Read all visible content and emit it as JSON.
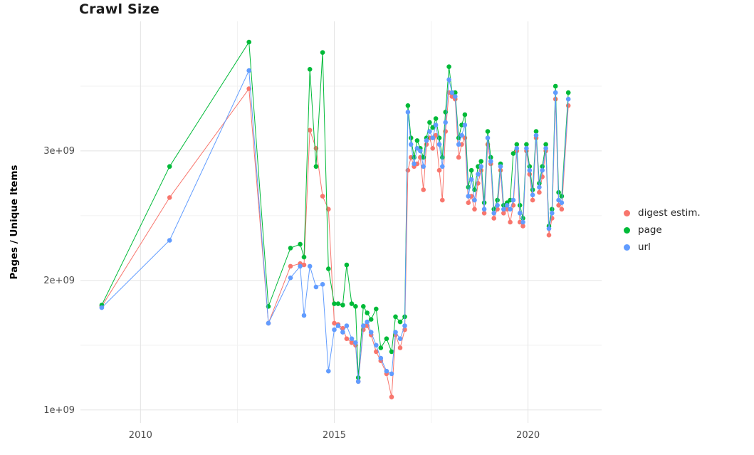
{
  "chart_data": {
    "type": "line",
    "title": "Crawl Size",
    "xlabel": "",
    "ylabel": "Pages / Unique Items",
    "y_values_unit": "billions (1e9) of pages / unique items",
    "legend_position": "right-center",
    "grid": "major and minor light-gray gridlines on white background, no axis lines",
    "xlim": [
      2008.45,
      2021.9
    ],
    "ylim_billions": [
      0.9,
      4.0
    ],
    "x_ticks": [
      2010,
      2015,
      2020
    ],
    "x_tick_labels": [
      "2010",
      "2015",
      "2020"
    ],
    "x_minor_ticks": [
      2012.5,
      2017.5
    ],
    "y_ticks_billions": [
      1,
      2,
      3
    ],
    "y_tick_labels": [
      "1e+09",
      "2e+09",
      "3e+09"
    ],
    "y_minor_ticks_billions": [
      1.5,
      2.5,
      3.5
    ],
    "x_years": [
      2009.0,
      2010.75,
      2012.8,
      2013.3,
      2013.87,
      2014.12,
      2014.22,
      2014.37,
      2014.53,
      2014.7,
      2014.85,
      2015.0,
      2015.1,
      2015.22,
      2015.32,
      2015.45,
      2015.55,
      2015.62,
      2015.75,
      2015.85,
      2015.95,
      2016.08,
      2016.2,
      2016.35,
      2016.48,
      2016.58,
      2016.7,
      2016.82,
      2016.9,
      2016.98,
      2017.06,
      2017.14,
      2017.22,
      2017.3,
      2017.38,
      2017.46,
      2017.54,
      2017.62,
      2017.71,
      2017.79,
      2017.87,
      2017.96,
      2018.04,
      2018.12,
      2018.21,
      2018.29,
      2018.37,
      2018.46,
      2018.54,
      2018.62,
      2018.71,
      2018.79,
      2018.87,
      2018.96,
      2019.04,
      2019.12,
      2019.21,
      2019.29,
      2019.37,
      2019.46,
      2019.54,
      2019.62,
      2019.71,
      2019.79,
      2019.87,
      2019.96,
      2020.04,
      2020.12,
      2020.21,
      2020.29,
      2020.37,
      2020.46,
      2020.54,
      2020.62,
      2020.71,
      2020.79,
      2020.87,
      2021.04
    ],
    "series": [
      {
        "name": "digest estim.",
        "color": "#F8766D",
        "values_billions": [
          1.8,
          2.64,
          3.48,
          1.67,
          2.11,
          2.13,
          2.12,
          3.16,
          3.02,
          2.65,
          2.55,
          1.67,
          1.66,
          1.63,
          1.55,
          1.52,
          1.5,
          1.22,
          1.62,
          1.65,
          1.58,
          1.45,
          1.38,
          1.28,
          1.1,
          1.58,
          1.48,
          1.62,
          2.85,
          2.95,
          2.88,
          2.9,
          2.95,
          2.7,
          3.05,
          3.1,
          3.02,
          3.12,
          2.85,
          2.62,
          3.15,
          3.45,
          3.42,
          3.4,
          2.95,
          3.05,
          3.1,
          2.6,
          2.65,
          2.55,
          2.75,
          2.85,
          2.52,
          3.05,
          2.9,
          2.48,
          2.55,
          2.85,
          2.52,
          2.55,
          2.45,
          2.58,
          3.0,
          2.45,
          2.42,
          3.0,
          2.82,
          2.62,
          3.1,
          2.68,
          2.8,
          3.0,
          2.35,
          2.48,
          3.4,
          2.58,
          2.55,
          3.35
        ]
      },
      {
        "name": "page",
        "color": "#00BA38",
        "values_billions": [
          1.81,
          2.88,
          3.84,
          1.8,
          2.25,
          2.28,
          2.18,
          3.63,
          2.88,
          3.76,
          2.09,
          1.82,
          1.82,
          1.81,
          2.12,
          1.82,
          1.8,
          1.25,
          1.8,
          1.75,
          1.7,
          1.78,
          1.48,
          1.55,
          1.45,
          1.72,
          1.68,
          1.72,
          3.35,
          3.1,
          2.95,
          3.08,
          3.02,
          2.95,
          3.1,
          3.22,
          3.18,
          3.25,
          3.1,
          2.95,
          3.3,
          3.65,
          3.45,
          3.45,
          3.1,
          3.2,
          3.28,
          2.72,
          2.85,
          2.7,
          2.88,
          2.92,
          2.6,
          3.15,
          2.95,
          2.55,
          2.62,
          2.9,
          2.58,
          2.6,
          2.62,
          2.98,
          3.05,
          2.58,
          2.48,
          3.05,
          2.88,
          2.7,
          3.15,
          2.75,
          2.88,
          3.05,
          2.42,
          2.55,
          3.5,
          2.68,
          2.65,
          3.45
        ]
      },
      {
        "name": "url",
        "color": "#619CFF",
        "values_billions": [
          1.79,
          2.31,
          3.62,
          1.67,
          2.02,
          2.11,
          1.73,
          2.11,
          1.95,
          1.97,
          1.3,
          1.62,
          1.65,
          1.6,
          1.65,
          1.55,
          1.52,
          1.22,
          1.65,
          1.68,
          1.6,
          1.5,
          1.4,
          1.3,
          1.28,
          1.6,
          1.55,
          1.65,
          3.3,
          3.05,
          2.9,
          3.02,
          3.0,
          2.88,
          3.08,
          3.15,
          3.1,
          3.2,
          3.05,
          2.88,
          3.22,
          3.55,
          3.45,
          3.42,
          3.05,
          3.12,
          3.2,
          2.65,
          2.78,
          2.62,
          2.82,
          2.88,
          2.55,
          3.1,
          2.92,
          2.52,
          2.58,
          2.88,
          2.55,
          2.58,
          2.55,
          2.62,
          3.02,
          2.52,
          2.45,
          3.02,
          2.85,
          2.66,
          3.12,
          2.72,
          2.85,
          3.02,
          2.4,
          2.52,
          3.45,
          2.62,
          2.6,
          3.4
        ]
      }
    ]
  },
  "styles": {
    "background": "#ffffff",
    "grid_major": "#e3e3e3",
    "grid_minor": "#f1f1f1",
    "tick_label_color": "#4d4d4d",
    "title_color": "#1c1c1c",
    "legend_text_color": "#262626"
  }
}
